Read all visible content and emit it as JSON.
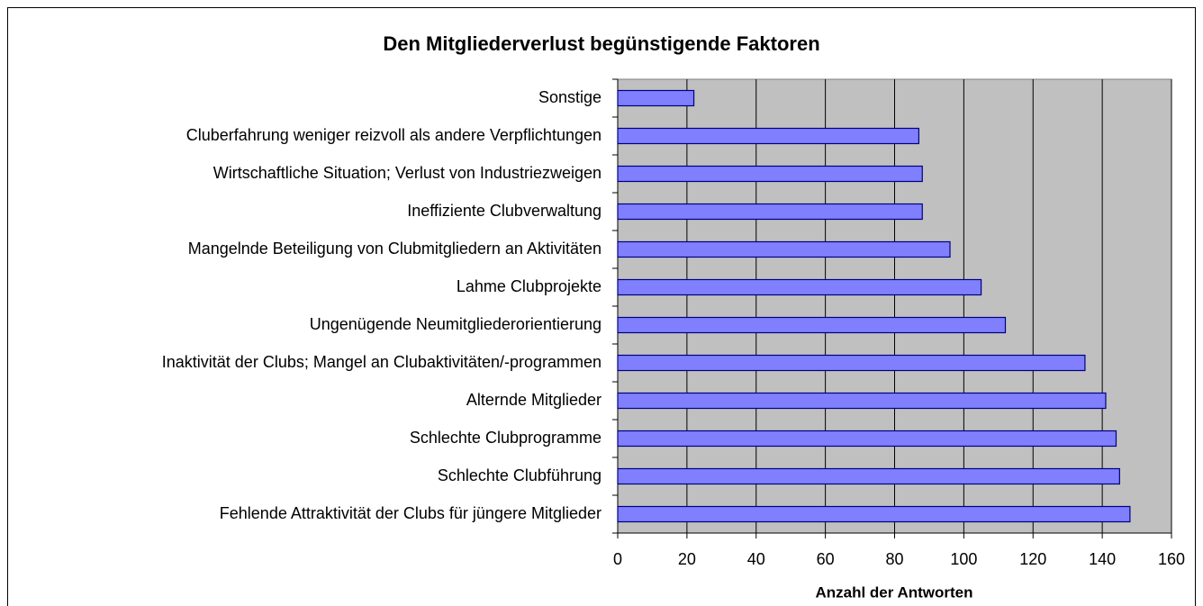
{
  "chart_data": {
    "type": "bar",
    "orientation": "horizontal",
    "title": "Den Mitgliederverlust begünstigende Faktoren",
    "x_label": "Anzahl der Antworten",
    "categories": [
      "Sonstige",
      "Cluberfahrung weniger reizvoll als andere Verpflichtungen",
      "Wirtschaftliche Situation; Verlust von Industriezweigen",
      "Ineffiziente Clubverwaltung",
      "Mangelnde Beteiligung von Clubmitgliedern an Aktivitäten",
      "Lahme Clubprojekte",
      "Ungenügende Neumitgliederorientierung",
      "Inaktivität der Clubs; Mangel an Clubaktivitäten/-programmen",
      "Alternde Mitglieder",
      "Schlechte Clubprogramme",
      "Schlechte Clubführung",
      "Fehlende Attraktivität der Clubs für jüngere Mitglieder"
    ],
    "values": [
      22,
      87,
      88,
      88,
      96,
      105,
      112,
      135,
      141,
      144,
      145,
      148
    ],
    "color": "#8080ff",
    "xlim": [
      0,
      160
    ],
    "xticks": [
      0,
      20,
      40,
      60,
      80,
      100,
      120,
      140,
      160
    ],
    "grid": true
  }
}
